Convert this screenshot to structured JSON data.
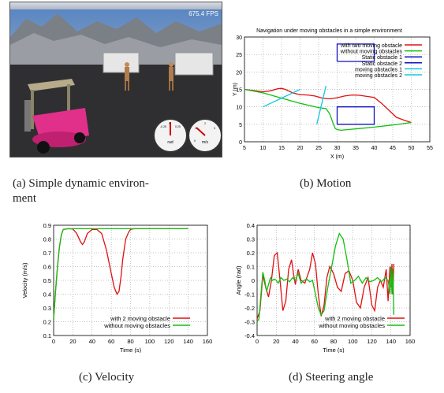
{
  "panel_a": {
    "fps_text": "675.4 FPS",
    "gauge_left_label": "rad",
    "gauge_right_label": "m/s",
    "gauge_left_marks": [
      "-0.25",
      "0",
      "0.25"
    ],
    "gauge_right_marks": [
      "0",
      "1",
      "2",
      "3"
    ]
  },
  "captions": {
    "a_line1": "(a)  Simple  dynamic  environ-",
    "a_line2": "ment",
    "b": "(b) Motion",
    "c": "(c) Velocity",
    "d": "(d) Steering angle"
  },
  "colors": {
    "red": "#e01010",
    "green": "#10c010",
    "blue": "#1010c0",
    "cyan": "#10c8e0"
  },
  "chart_data": [
    {
      "id": "motion",
      "type": "line",
      "title": "Navigation under moving obstacles in a simple environment",
      "xlabel": "X (m)",
      "ylabel": "Y (m)",
      "xlim": [
        5,
        55
      ],
      "ylim": [
        0,
        30
      ],
      "xticks": [
        "5",
        "10",
        "15",
        "20",
        "25",
        "30",
        "35",
        "40",
        "45",
        "50",
        "55"
      ],
      "yticks": [
        "0",
        "5",
        "10",
        "15",
        "20",
        "25",
        "30"
      ],
      "grid": true,
      "legend_position": "top-right",
      "series": [
        {
          "name": "with two moving obstacle",
          "color": "#e01010",
          "x": [
            5,
            8,
            10,
            12,
            14,
            15,
            16,
            18,
            20,
            22,
            24,
            26,
            28,
            30,
            32,
            34,
            36,
            38,
            40,
            42,
            44,
            46,
            48,
            50
          ],
          "y": [
            15,
            14.6,
            14.3,
            14.6,
            15.2,
            15.3,
            15,
            14,
            13.5,
            13.4,
            13.1,
            12.5,
            12.3,
            12.6,
            13.1,
            13.4,
            13.3,
            13,
            12.7,
            11,
            9,
            7,
            6.2,
            5.5
          ]
        },
        {
          "name": "without moving obstacles",
          "color": "#10c010",
          "x": [
            5,
            10,
            15,
            20,
            25,
            27,
            28,
            29,
            29.5,
            30,
            31,
            33,
            36,
            40,
            45,
            50
          ],
          "y": [
            15,
            14,
            12.5,
            11,
            9.8,
            9.5,
            8,
            5,
            3.8,
            3.5,
            3.3,
            3.5,
            3.8,
            4.2,
            4.8,
            5.5
          ]
        },
        {
          "name": "Static obstacle 1",
          "color": "#1010c0",
          "x": [
            30,
            40,
            40,
            30,
            30
          ],
          "y": [
            23,
            23,
            28,
            28,
            23
          ]
        },
        {
          "name": "Static obstacle 2",
          "color": "#1010c0",
          "x": [
            30,
            40,
            40,
            30,
            30
          ],
          "y": [
            5,
            5,
            10,
            10,
            5
          ]
        },
        {
          "name": "moving obstacles 1",
          "color": "#10c8e0",
          "x": [
            10,
            20
          ],
          "y": [
            10,
            15
          ]
        },
        {
          "name": "moving obstacles 2",
          "color": "#10c8e0",
          "x": [
            24.5,
            27
          ],
          "y": [
            5,
            16
          ]
        }
      ]
    },
    {
      "id": "velocity",
      "type": "line",
      "title": "",
      "xlabel": "Time (s)",
      "ylabel": "Velocity (m/s)",
      "xlim": [
        0,
        160
      ],
      "ylim": [
        0.1,
        0.9
      ],
      "xticks": [
        "0",
        "20",
        "40",
        "60",
        "80",
        "100",
        "120",
        "140",
        "160"
      ],
      "yticks": [
        "0.1",
        "0.2",
        "0.3",
        "0.4",
        "0.5",
        "0.6",
        "0.7",
        "0.8",
        "0.9"
      ],
      "grid": true,
      "legend_position": "bottom-right",
      "series": [
        {
          "name": "with 2 moving obstacle",
          "color": "#e01010",
          "x": [
            0,
            2,
            4,
            6,
            8,
            10,
            15,
            20,
            24,
            28,
            30,
            32,
            35,
            40,
            45,
            50,
            55,
            60,
            63,
            66,
            68,
            70,
            72,
            75,
            78,
            80,
            82,
            85,
            90,
            100,
            110,
            120,
            130,
            140
          ],
          "y": [
            0.22,
            0.42,
            0.6,
            0.74,
            0.83,
            0.87,
            0.875,
            0.873,
            0.84,
            0.78,
            0.76,
            0.78,
            0.84,
            0.87,
            0.87,
            0.84,
            0.72,
            0.55,
            0.45,
            0.4,
            0.42,
            0.52,
            0.66,
            0.8,
            0.85,
            0.87,
            0.873,
            0.875,
            0.875,
            0.875,
            0.875,
            0.875,
            0.875,
            0.875
          ]
        },
        {
          "name": "without moving obstacles",
          "color": "#10c010",
          "x": [
            0,
            2,
            4,
            6,
            8,
            10,
            15,
            20,
            40,
            60,
            80,
            100,
            120,
            140
          ],
          "y": [
            0.22,
            0.42,
            0.6,
            0.74,
            0.83,
            0.87,
            0.875,
            0.875,
            0.875,
            0.875,
            0.875,
            0.875,
            0.875,
            0.875
          ]
        }
      ]
    },
    {
      "id": "steering",
      "type": "line",
      "title": "",
      "xlabel": "Time (s)",
      "ylabel": "Angle (rad)",
      "xlim": [
        0,
        160
      ],
      "ylim": [
        -0.4,
        0.4
      ],
      "xticks": [
        "0",
        "20",
        "40",
        "60",
        "80",
        "100",
        "120",
        "140",
        "160"
      ],
      "yticks": [
        "-0.4",
        "-0.3",
        "-0.2",
        "-0.1",
        "0",
        "0.1",
        "0.2",
        "0.3",
        "0.4"
      ],
      "grid": true,
      "legend_position": "bottom-right",
      "series": [
        {
          "name": "with 2 moving obstacle",
          "color": "#e01010",
          "x": [
            0,
            3,
            6,
            9,
            12,
            15,
            18,
            21,
            24,
            27,
            30,
            33,
            36,
            38,
            40,
            43,
            46,
            50,
            55,
            58,
            61,
            64,
            67,
            70,
            73,
            76,
            80,
            84,
            88,
            92,
            96,
            100,
            104,
            108,
            112,
            116,
            120,
            123,
            126,
            129,
            132,
            135,
            137,
            139,
            140,
            141,
            142,
            143
          ],
          "y": [
            -0.28,
            -0.22,
            0.04,
            -0.05,
            -0.12,
            0.0,
            0.18,
            0.2,
            0.0,
            -0.22,
            -0.15,
            0.08,
            0.15,
            0.05,
            -0.03,
            0.08,
            0.0,
            -0.02,
            0.08,
            0.2,
            0.12,
            -0.1,
            -0.26,
            -0.18,
            0.02,
            0.1,
            0.05,
            -0.05,
            -0.08,
            0.05,
            0.07,
            0.0,
            -0.16,
            -0.2,
            -0.05,
            0.02,
            -0.18,
            -0.22,
            -0.05,
            0.0,
            -0.05,
            0.08,
            -0.15,
            0.1,
            -0.05,
            0.12,
            -0.1,
            0.12
          ]
        },
        {
          "name": "without moving obstacles",
          "color": "#10c010",
          "x": [
            0,
            2,
            4,
            6,
            8,
            10,
            12,
            14,
            16,
            18,
            20,
            22,
            25,
            28,
            31,
            34,
            37,
            40,
            43,
            46,
            49,
            52,
            55,
            58,
            61,
            64,
            67,
            70,
            74,
            78,
            82,
            86,
            90,
            94,
            98,
            102,
            106,
            110,
            114,
            118,
            122,
            126,
            130,
            134,
            137,
            139,
            140,
            141,
            142,
            143
          ],
          "y": [
            -0.3,
            -0.28,
            -0.1,
            0.06,
            0.0,
            -0.08,
            -0.03,
            0.02,
            0.0,
            0.01,
            0.0,
            -0.02,
            0.02,
            0.0,
            0.01,
            -0.01,
            0.02,
            0.0,
            0.05,
            -0.02,
            0.0,
            0.01,
            -0.01,
            0.0,
            -0.1,
            -0.2,
            -0.25,
            -0.22,
            -0.05,
            0.1,
            0.25,
            0.34,
            0.3,
            0.15,
            -0.02,
            0.0,
            0.03,
            -0.02,
            0.02,
            -0.01,
            0.0,
            0.02,
            -0.01,
            0.02,
            0.0,
            -0.1,
            0.1,
            -0.1,
            0.08,
            -0.25
          ]
        }
      ]
    }
  ]
}
